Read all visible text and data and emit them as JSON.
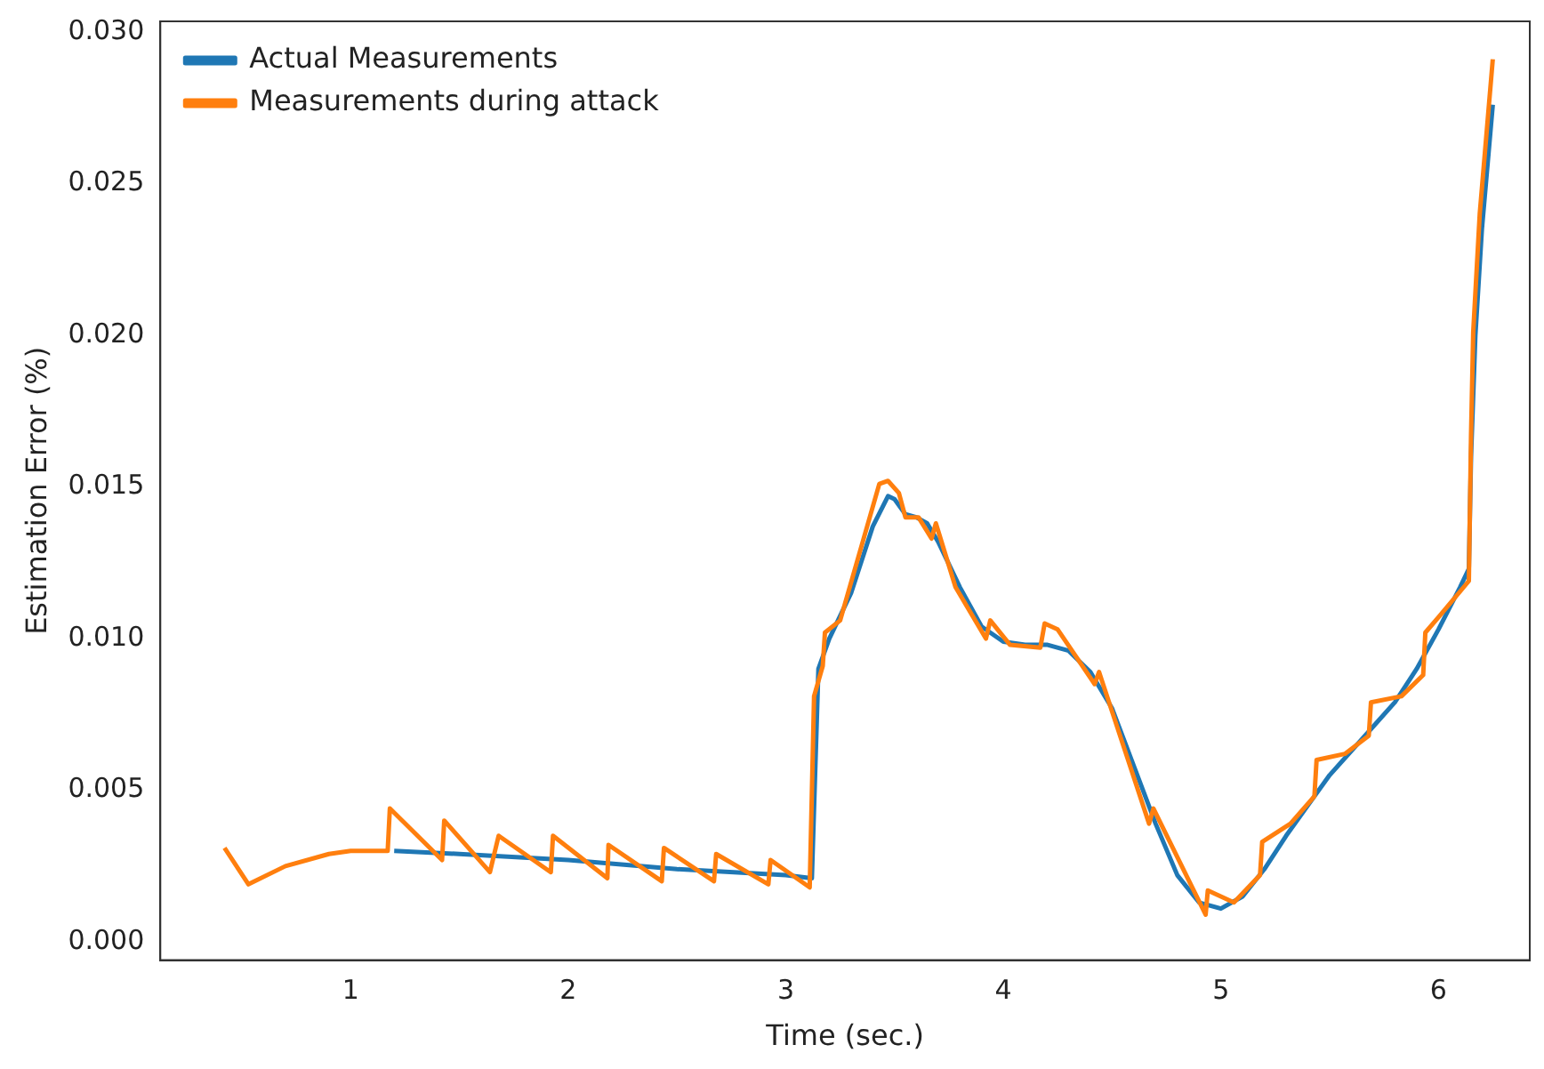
{
  "chart_data": {
    "type": "line",
    "xlabel": "Time (sec.)",
    "ylabel": "Estimation Error (%)",
    "xlim": [
      0.125,
      6.42
    ],
    "xticks": [
      1,
      2,
      3,
      4,
      5,
      6
    ],
    "ylim": [
      -0.0006,
      0.03035
    ],
    "yticks": [
      {
        "value": 0,
        "label": "0.000"
      },
      {
        "value": 0.005,
        "label": "0.005"
      },
      {
        "value": 0.01,
        "label": "0.010"
      },
      {
        "value": 0.015,
        "label": "0.015"
      },
      {
        "value": 0.02,
        "label": "0.020"
      },
      {
        "value": 0.025,
        "label": "0.025"
      },
      {
        "value": 0.03,
        "label": "0.030"
      }
    ],
    "grid": false,
    "legend": "top left",
    "marker": "none",
    "line_style": "solid",
    "series": [
      {
        "name": "Actual Measurements",
        "color": "#1f77b4",
        "x": [
          1.2,
          1.5,
          2.0,
          2.5,
          3.0,
          3.12,
          3.15,
          3.2,
          3.3,
          3.4,
          3.47,
          3.5,
          3.55,
          3.6,
          3.65,
          3.7,
          3.8,
          3.9,
          4.0,
          4.1,
          4.2,
          4.3,
          4.4,
          4.5,
          4.6,
          4.7,
          4.8,
          4.9,
          5.0,
          5.1,
          5.2,
          5.3,
          5.4,
          5.5,
          5.6,
          5.7,
          5.8,
          5.9,
          6.0,
          6.1,
          6.14,
          6.15,
          6.17,
          6.2,
          6.25
        ],
        "values": [
          0.003,
          0.0029,
          0.0027,
          0.0024,
          0.0022,
          0.0021,
          0.009,
          0.01,
          0.0115,
          0.0137,
          0.0147,
          0.0146,
          0.0141,
          0.014,
          0.0138,
          0.0132,
          0.0117,
          0.0104,
          0.0099,
          0.0098,
          0.0098,
          0.0096,
          0.0089,
          0.0077,
          0.0058,
          0.0039,
          0.0022,
          0.0013,
          0.0011,
          0.0015,
          0.0024,
          0.0035,
          0.0045,
          0.0055,
          0.0063,
          0.0071,
          0.0079,
          0.009,
          0.0103,
          0.0117,
          0.0123,
          0.016,
          0.02,
          0.0235,
          0.0276
        ]
      },
      {
        "name": "Measurements during attack",
        "color": "#ff7f0e",
        "x": [
          0.42,
          0.53,
          0.7,
          0.9,
          1.0,
          1.17,
          1.18,
          1.42,
          1.43,
          1.64,
          1.68,
          1.92,
          1.93,
          2.18,
          2.185,
          2.43,
          2.44,
          2.67,
          2.68,
          2.92,
          2.93,
          3.11,
          3.13,
          3.17,
          3.18,
          3.25,
          3.43,
          3.47,
          3.52,
          3.55,
          3.61,
          3.67,
          3.69,
          3.78,
          3.92,
          3.94,
          4.03,
          4.17,
          4.19,
          4.25,
          4.42,
          4.44,
          4.67,
          4.69,
          4.93,
          4.94,
          5.06,
          5.18,
          5.19,
          5.32,
          5.43,
          5.44,
          5.57,
          5.68,
          5.69,
          5.83,
          5.93,
          5.94,
          6.0,
          6.14,
          6.15,
          6.16,
          6.19,
          6.25
        ],
        "values": [
          0.0031,
          0.0019,
          0.0025,
          0.0029,
          0.003,
          0.003,
          0.0044,
          0.0027,
          0.004,
          0.0023,
          0.0035,
          0.0023,
          0.0035,
          0.0021,
          0.0032,
          0.002,
          0.0031,
          0.002,
          0.0029,
          0.0019,
          0.0027,
          0.0018,
          0.0081,
          0.0091,
          0.0102,
          0.0106,
          0.0151,
          0.0152,
          0.0148,
          0.014,
          0.014,
          0.0133,
          0.0138,
          0.0117,
          0.01,
          0.0106,
          0.0098,
          0.0097,
          0.0105,
          0.0103,
          0.0085,
          0.0089,
          0.0039,
          0.0044,
          0.0009,
          0.0017,
          0.0013,
          0.0022,
          0.0033,
          0.0039,
          0.0048,
          0.006,
          0.0062,
          0.0068,
          0.0079,
          0.0081,
          0.0088,
          0.0102,
          0.0107,
          0.0119,
          0.0167,
          0.0201,
          0.024,
          0.0291
        ]
      }
    ]
  }
}
